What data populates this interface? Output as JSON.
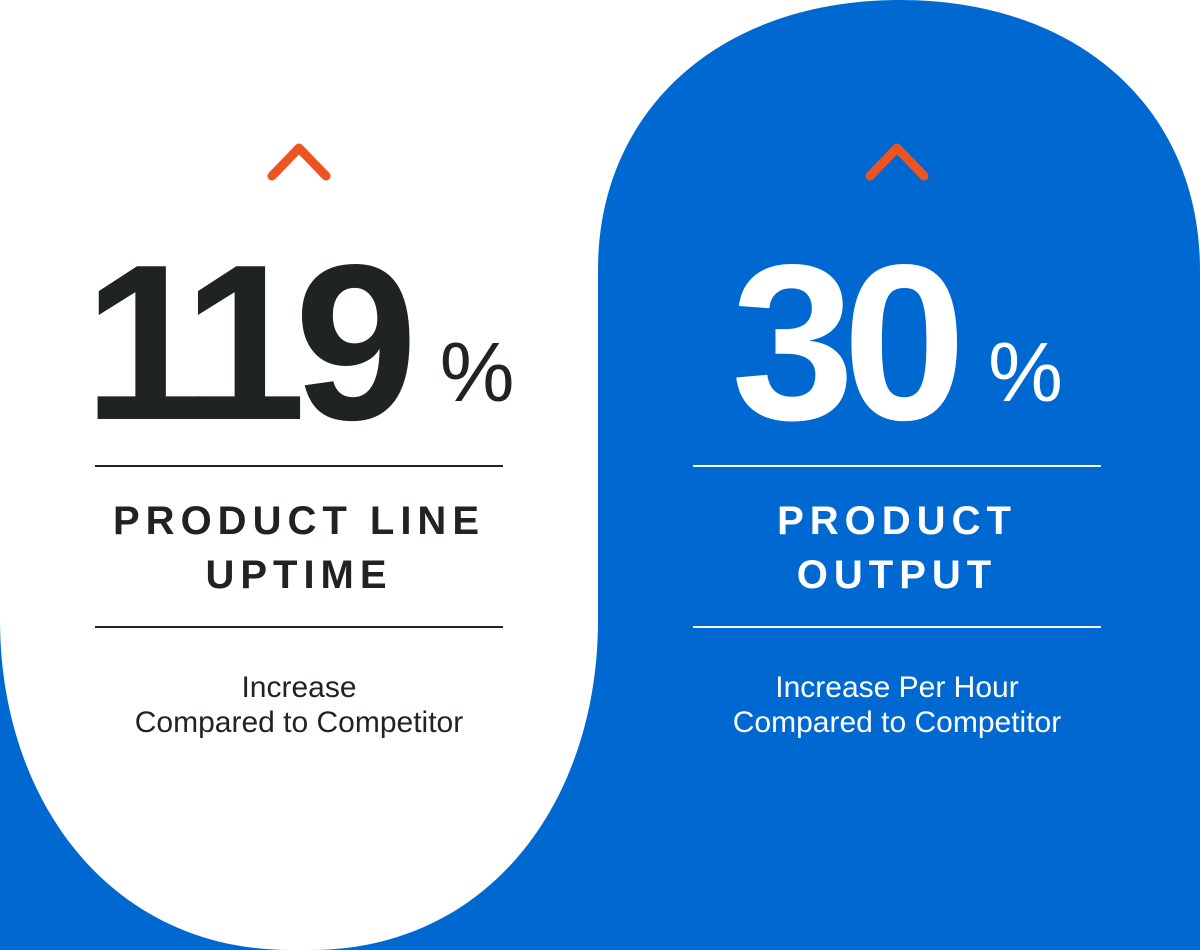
{
  "colors": {
    "brand_blue": "#0069d1",
    "accent_orange": "#ee5422",
    "dark_text": "#1f2321",
    "light_text": "#ffffff",
    "background": "#ffffff"
  },
  "stats": [
    {
      "value": "119",
      "unit": "%",
      "trend_icon": "caret-up-icon",
      "label_lines": [
        "PRODUCT LINE",
        "UPTIME"
      ],
      "description_lines": [
        "Increase",
        "Compared to Competitor"
      ]
    },
    {
      "value": "30",
      "unit": "%",
      "trend_icon": "caret-up-icon",
      "label_lines": [
        "PRODUCT",
        "OUTPUT"
      ],
      "description_lines": [
        "Increase Per Hour",
        "Compared to Competitor"
      ]
    }
  ]
}
